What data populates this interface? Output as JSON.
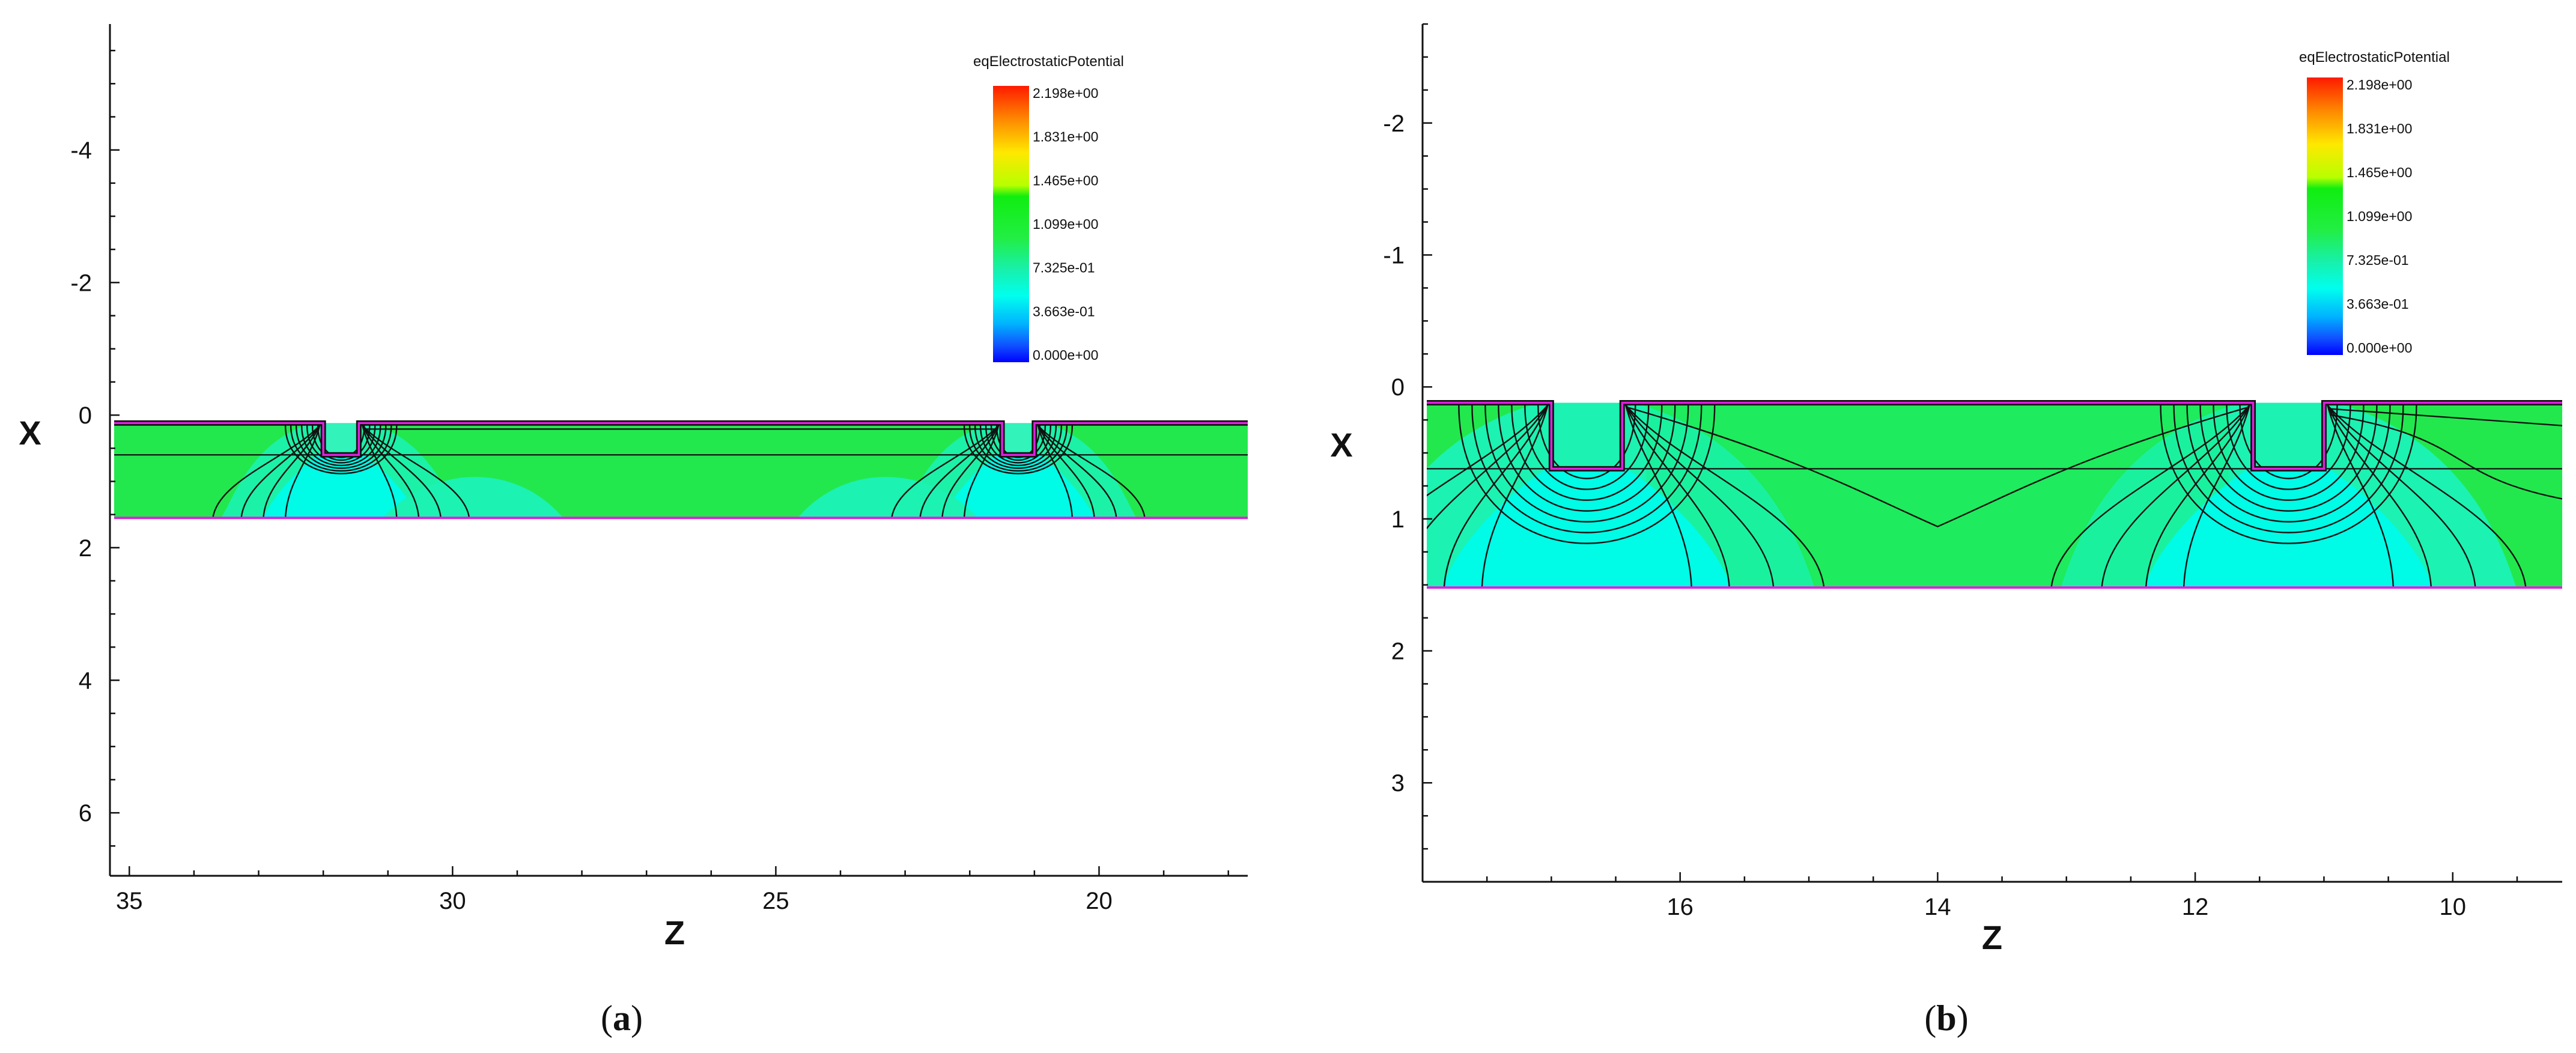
{
  "panels": [
    {
      "caption": "(a)",
      "caption_letter": "a",
      "x_axis_title": "Z",
      "y_axis_title": "X",
      "x_range": [
        35.3,
        17.7
      ],
      "y_range": [
        -5.9,
        6.95
      ],
      "x_ticks": [
        35,
        30,
        25,
        20
      ],
      "y_ticks": [
        -4,
        -2,
        0,
        2,
        4,
        6
      ],
      "x_tick_labels": [
        "35",
        "30",
        "25",
        "20"
      ],
      "y_tick_labels": [
        "-4",
        "-2",
        "0",
        "2",
        "4",
        "6"
      ],
      "device": {
        "z_range": [
          35.3,
          17.7
        ],
        "top_x": 0.12,
        "inner_line_x": 0.6,
        "bottom_x": 1.55,
        "trenches": [
          {
            "z_left": 32.0,
            "z_right": 31.45,
            "depth_x": 0.6
          },
          {
            "z_left": 21.5,
            "z_right": 21.0,
            "depth_x": 0.6
          }
        ]
      },
      "colorbar": {
        "title": "eqElectrostaticPotential",
        "labels": [
          "2.198e+00",
          "1.831e+00",
          "1.465e+00",
          "1.099e+00",
          "7.325e-01",
          "3.663e-01",
          "0.000e+00"
        ]
      }
    },
    {
      "caption": "(b)",
      "caption_letter": "b",
      "x_axis_title": "Z",
      "y_axis_title": "X",
      "x_range": [
        18.0,
        9.15
      ],
      "y_range": [
        -2.75,
        3.75
      ],
      "x_ticks": [
        16,
        14,
        12,
        10
      ],
      "y_ticks": [
        -2,
        -1,
        0,
        1,
        2,
        3
      ],
      "x_tick_labels": [
        "16",
        "14",
        "12",
        "10"
      ],
      "y_tick_labels": [
        "-2",
        "-1",
        "0",
        "1",
        "2",
        "3"
      ],
      "device": {
        "z_range": [
          18.0,
          9.15
        ],
        "top_x": 0.12,
        "inner_line_x": 0.62,
        "bottom_x": 1.52,
        "trenches": [
          {
            "z_left": 17.0,
            "z_right": 16.45,
            "depth_x": 0.62
          },
          {
            "z_left": 11.55,
            "z_right": 11.0,
            "depth_x": 0.62
          }
        ]
      },
      "colorbar": {
        "title": "eqElectrostaticPotential",
        "labels": [
          "2.198e+00",
          "1.831e+00",
          "1.465e+00",
          "1.099e+00",
          "7.325e-01",
          "3.663e-01",
          "0.000e+00"
        ]
      }
    }
  ]
}
